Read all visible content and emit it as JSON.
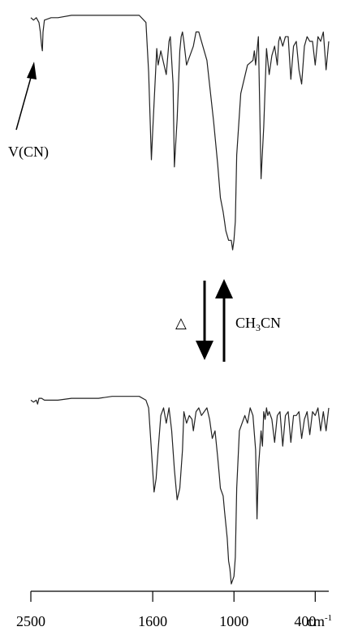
{
  "chart_data": {
    "type": "line",
    "title": "",
    "xlabel": "",
    "ylabel": "",
    "x_unit": "cm",
    "x_unit_exponent": "-1",
    "xlim": [
      2500,
      300
    ],
    "grid": false,
    "legend": "none",
    "x_ticks": [
      {
        "value": 2500,
        "label": "2500"
      },
      {
        "value": 1600,
        "label": "1600"
      },
      {
        "value": 1000,
        "label": "1000"
      },
      {
        "value": 400,
        "label": "400"
      }
    ],
    "annotations": {
      "cn_peak": "V(CN)",
      "heat_symbol": "△",
      "solvent_prefix": "CH",
      "solvent_subscript": "3",
      "solvent_suffix": "CN"
    },
    "series": [
      {
        "x": [
          2500,
          2480,
          2460,
          2440,
          2430,
          2420,
          2415,
          2410,
          2400,
          2350,
          2300,
          2200,
          2100,
          2000,
          1900,
          1800,
          1700,
          1650,
          1630,
          1610,
          1600,
          1590,
          1570,
          1560,
          1540,
          1500,
          1480,
          1470,
          1450,
          1440,
          1420,
          1400,
          1390,
          1380,
          1370,
          1350,
          1300,
          1280,
          1260,
          1250,
          1200,
          1150,
          1120,
          1100,
          1080,
          1070,
          1060,
          1040,
          1020,
          1010,
          1000,
          990,
          980,
          950,
          900,
          860,
          850,
          840,
          820,
          800,
          780,
          760,
          740,
          720,
          700,
          680,
          670,
          660,
          640,
          620,
          600,
          580,
          560,
          540,
          520,
          500,
          480,
          460,
          440,
          420,
          400,
          380,
          360,
          340,
          320,
          300
        ],
        "y": [
          2,
          3,
          2,
          4,
          8,
          14,
          16,
          8,
          3,
          2,
          2,
          1,
          1,
          1,
          1,
          1,
          1,
          4,
          25,
          62,
          50,
          38,
          15,
          22,
          16,
          26,
          12,
          10,
          30,
          65,
          45,
          16,
          10,
          8,
          12,
          22,
          14,
          8,
          8,
          10,
          20,
          46,
          64,
          78,
          84,
          88,
          92,
          96,
          96,
          100,
          96,
          88,
          60,
          34,
          22,
          20,
          16,
          22,
          10,
          70,
          48,
          15,
          26,
          18,
          14,
          22,
          12,
          10,
          14,
          10,
          10,
          28,
          14,
          12,
          24,
          30,
          14,
          10,
          12,
          12,
          22,
          10,
          12,
          8,
          24,
          12
        ]
      },
      {
        "x": [
          2500,
          2480,
          2460,
          2450,
          2440,
          2420,
          2400,
          2300,
          2200,
          2100,
          2000,
          1900,
          1800,
          1750,
          1700,
          1650,
          1630,
          1610,
          1590,
          1575,
          1560,
          1540,
          1520,
          1500,
          1480,
          1460,
          1440,
          1420,
          1400,
          1380,
          1370,
          1350,
          1330,
          1310,
          1300,
          1280,
          1260,
          1240,
          1200,
          1180,
          1160,
          1140,
          1120,
          1110,
          1100,
          1080,
          1070,
          1050,
          1040,
          1030,
          1020,
          1010,
          1000,
          990,
          980,
          960,
          940,
          920,
          900,
          880,
          860,
          840,
          830,
          820,
          800,
          790,
          780,
          770,
          760,
          750,
          740,
          720,
          700,
          680,
          660,
          640,
          620,
          600,
          580,
          560,
          540,
          520,
          500,
          480,
          460,
          440,
          420,
          400,
          380,
          360,
          340,
          320,
          300
        ],
        "y": [
          4,
          5,
          4,
          6,
          3,
          3,
          4,
          4,
          3,
          3,
          3,
          2,
          2,
          2,
          2,
          4,
          8,
          30,
          52,
          45,
          30,
          12,
          8,
          16,
          8,
          20,
          40,
          56,
          50,
          30,
          10,
          16,
          12,
          14,
          20,
          10,
          8,
          12,
          8,
          14,
          24,
          20,
          34,
          42,
          50,
          54,
          62,
          76,
          88,
          92,
          100,
          98,
          96,
          86,
          50,
          20,
          16,
          12,
          16,
          8,
          12,
          30,
          66,
          40,
          20,
          28,
          10,
          14,
          8,
          12,
          10,
          14,
          26,
          12,
          10,
          28,
          12,
          10,
          26,
          12,
          12,
          10,
          24,
          14,
          10,
          22,
          10,
          12,
          8,
          20,
          10,
          20,
          8
        ]
      }
    ]
  }
}
